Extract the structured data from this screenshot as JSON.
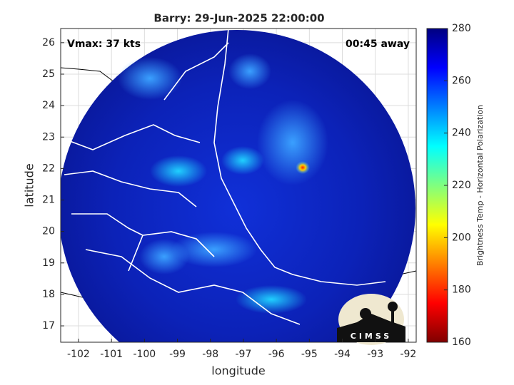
{
  "chart_data": {
    "type": "map",
    "title": "Barry: 29-Jun-2025 22:00:00",
    "annotations": [
      "Vmax: 37 kts",
      "00:45 away"
    ],
    "x_label": "longitude",
    "y_label": "latitude",
    "xlim": [
      -102.54,
      -91.76
    ],
    "ylim": [
      16.48,
      26.45
    ],
    "xticks": [
      -102,
      -101,
      -100,
      -99,
      -98,
      -97,
      -96,
      -95,
      -94,
      -93,
      -92
    ],
    "yticks": [
      17,
      18,
      19,
      20,
      21,
      22,
      23,
      24,
      25,
      26
    ],
    "grid": true,
    "colorbar": {
      "label": "Brightness Temp - Horizontal Polarization",
      "colormap": "jet",
      "lim": [
        160,
        280
      ],
      "ticks": [
        160,
        180,
        200,
        220,
        240,
        260,
        280
      ]
    },
    "logo": "CIMSS"
  }
}
